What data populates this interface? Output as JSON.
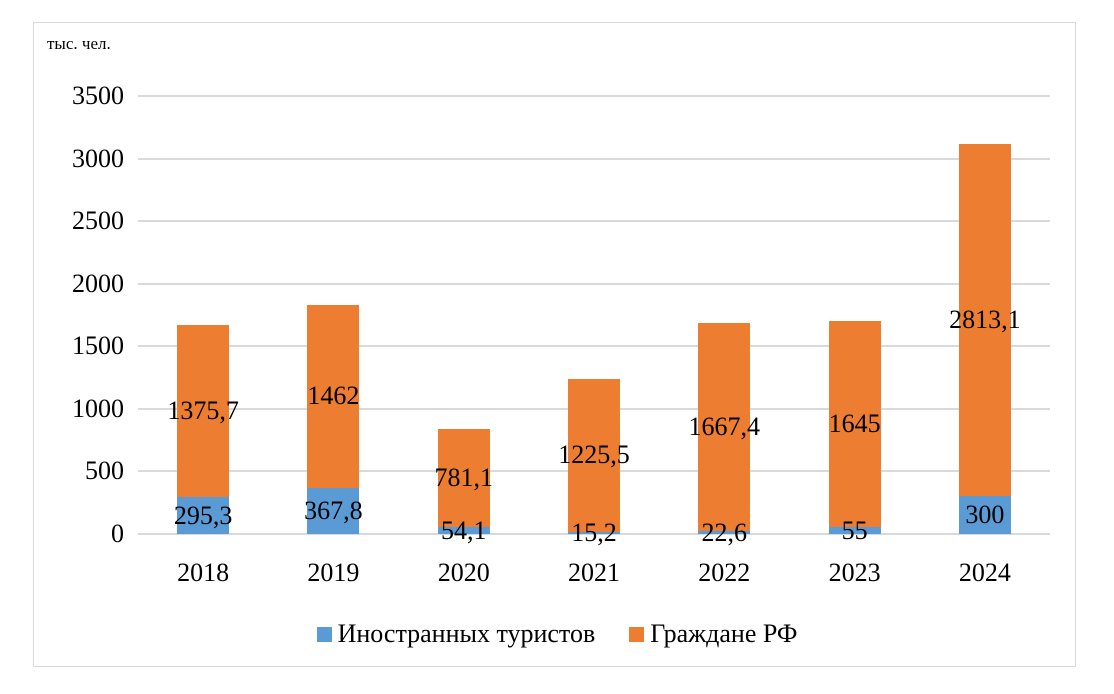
{
  "chart_data": {
    "type": "bar",
    "stacked": true,
    "title": "",
    "xlabel": "",
    "ylabel": "тыс. чел.",
    "ylim": [
      0,
      3500
    ],
    "yticks": [
      0,
      500,
      1000,
      1500,
      2000,
      2500,
      3000,
      3500
    ],
    "grid": true,
    "legend_position": "bottom",
    "categories": [
      "2018",
      "2019",
      "2020",
      "2021",
      "2022",
      "2023",
      "2024"
    ],
    "series": [
      {
        "name": "Иностранных туристов",
        "color": "#5B9BD5",
        "values": [
          295.3,
          367.8,
          54.1,
          15.2,
          22.6,
          55,
          300
        ],
        "labels": [
          "295,3",
          "367,8",
          "54,1",
          "15,2",
          "22,6",
          "55",
          "300"
        ]
      },
      {
        "name": "Граждане РФ",
        "color": "#ED7D31",
        "values": [
          1375.7,
          1462,
          781.1,
          1225.5,
          1667.4,
          1645,
          2813.1
        ],
        "labels": [
          "1375,7",
          "1462",
          "781,1",
          "1225,5",
          "1667,4",
          "1645",
          "2813,1"
        ]
      }
    ]
  },
  "unit_label": "тыс. чел.",
  "legend": [
    {
      "label": "Иностранных туристов",
      "color": "#5B9BD5"
    },
    {
      "label": "Граждане РФ",
      "color": "#ED7D31"
    }
  ]
}
